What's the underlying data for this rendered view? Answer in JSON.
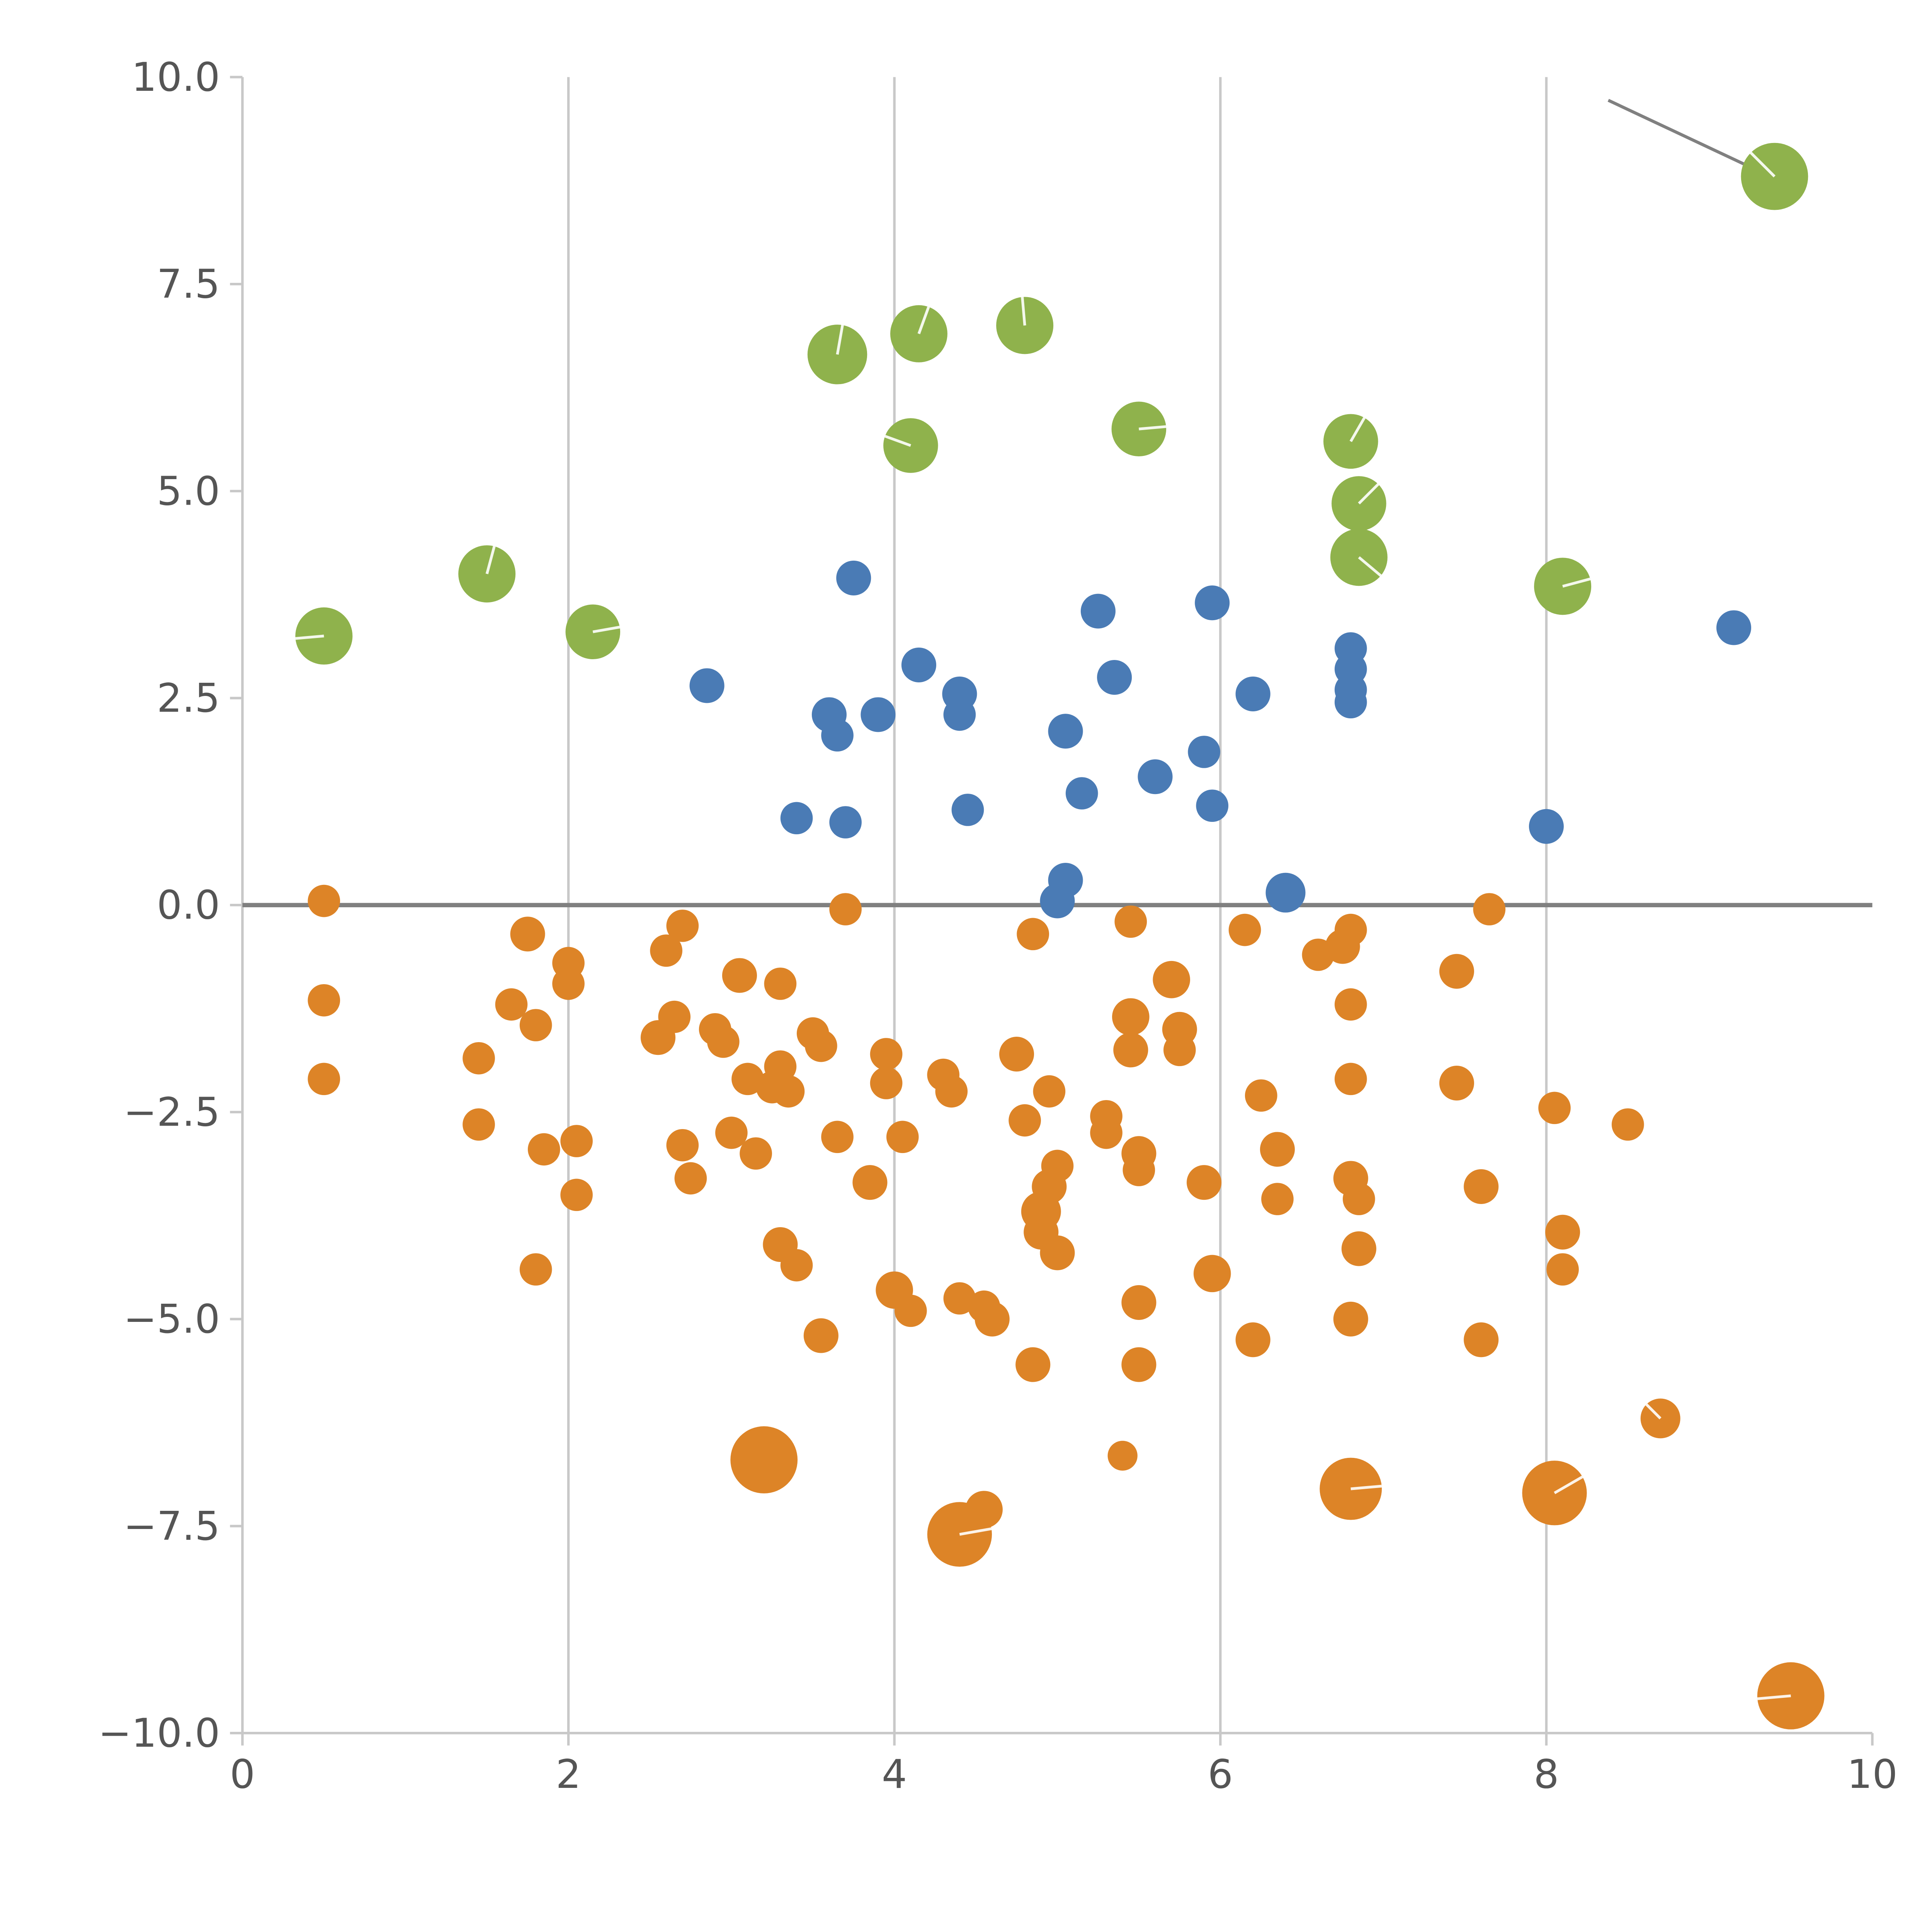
{
  "chart_data": {
    "type": "scatter",
    "title": "",
    "xlabel": "",
    "ylabel": "",
    "xlim": [
      0,
      10
    ],
    "ylim": [
      -10,
      10
    ],
    "grid": "vertical-only",
    "legend": "none",
    "x_ticks": [
      0,
      2,
      4,
      6,
      8,
      10
    ],
    "x_tick_labels": [
      "0",
      "2",
      "4",
      "6",
      "8",
      "10"
    ],
    "y_ticks": [
      -10,
      -7.5,
      -5,
      -2.5,
      0,
      2.5,
      5,
      7.5,
      10
    ],
    "y_tick_labels": [
      "−10.0",
      "−7.5",
      "−5.0",
      "−2.5",
      "0.0",
      "2.5",
      "5.0",
      "7.5",
      "10.0"
    ],
    "x_gridlines": [
      2,
      4,
      6,
      8
    ],
    "zero_line_y": 0,
    "annotation_line": {
      "x1": 8.38,
      "y1": 9.72,
      "x2": 9.32,
      "y2": 8.85
    },
    "colors": {
      "green": "#8fb24c",
      "blue": "#4a7bb5",
      "orange": "#dd8427",
      "grid": "#c8c8c8",
      "spine": "#c8c8c8",
      "zero_line": "#808080",
      "annotation": "#808080",
      "axis_text": "#555555",
      "bubble_tick": "#ffffff",
      "background": "#ffffff"
    },
    "point_format": [
      "x",
      "y",
      "radius_px",
      "white_tick_angle_deg(optional)"
    ],
    "series": [
      {
        "name": "green-bubbles",
        "color_key": "green",
        "points": [
          [
            0.5,
            3.25,
            23,
            185
          ],
          [
            1.5,
            4.0,
            23,
            75
          ],
          [
            2.15,
            3.3,
            22,
            10
          ],
          [
            3.65,
            6.65,
            24,
            80
          ],
          [
            4.15,
            6.9,
            23,
            70
          ],
          [
            4.1,
            5.55,
            22,
            160
          ],
          [
            4.8,
            7.0,
            23,
            95
          ],
          [
            5.5,
            5.75,
            22,
            5
          ],
          [
            6.8,
            5.6,
            22,
            60
          ],
          [
            6.85,
            4.85,
            22,
            45
          ],
          [
            6.85,
            4.2,
            23,
            -40
          ],
          [
            8.1,
            3.85,
            23,
            15
          ],
          [
            9.4,
            8.8,
            27,
            135
          ]
        ]
      },
      {
        "name": "blue-dots",
        "color_key": "blue",
        "points": [
          [
            2.85,
            2.65,
            14
          ],
          [
            3.4,
            1.05,
            13
          ],
          [
            3.6,
            2.3,
            14
          ],
          [
            3.65,
            2.05,
            13
          ],
          [
            3.7,
            1.0,
            13
          ],
          [
            3.75,
            3.95,
            14
          ],
          [
            3.9,
            2.3,
            14
          ],
          [
            4.15,
            2.9,
            14
          ],
          [
            4.4,
            2.55,
            14
          ],
          [
            4.4,
            2.3,
            13
          ],
          [
            4.45,
            1.15,
            13
          ],
          [
            5.0,
            0.05,
            14
          ],
          [
            5.05,
            0.3,
            14
          ],
          [
            5.05,
            2.1,
            14
          ],
          [
            5.15,
            1.35,
            13
          ],
          [
            5.25,
            3.55,
            14
          ],
          [
            5.35,
            2.75,
            14
          ],
          [
            5.6,
            1.55,
            14
          ],
          [
            5.9,
            1.85,
            13
          ],
          [
            5.95,
            3.65,
            14
          ],
          [
            5.95,
            1.2,
            13
          ],
          [
            6.2,
            2.55,
            14
          ],
          [
            6.4,
            0.15,
            16
          ],
          [
            6.8,
            3.1,
            13
          ],
          [
            6.8,
            2.85,
            13
          ],
          [
            6.8,
            2.6,
            13
          ],
          [
            6.8,
            2.45,
            13
          ],
          [
            8.0,
            0.95,
            14
          ],
          [
            9.15,
            3.35,
            14
          ]
        ]
      },
      {
        "name": "orange-dots",
        "color_key": "orange",
        "points": [
          [
            0.5,
            0.05,
            13
          ],
          [
            0.5,
            -1.15,
            13
          ],
          [
            0.5,
            -2.1,
            13
          ],
          [
            1.45,
            -1.85,
            13
          ],
          [
            1.45,
            -2.65,
            13
          ],
          [
            1.65,
            -1.2,
            13
          ],
          [
            1.75,
            -0.35,
            14
          ],
          [
            1.8,
            -1.45,
            13
          ],
          [
            1.85,
            -2.95,
            13
          ],
          [
            1.8,
            -4.4,
            13
          ],
          [
            2.0,
            -0.7,
            13
          ],
          [
            2.0,
            -0.95,
            13
          ],
          [
            2.05,
            -2.85,
            13
          ],
          [
            2.05,
            -3.5,
            13
          ],
          [
            2.55,
            -1.6,
            14
          ],
          [
            2.6,
            -0.55,
            13
          ],
          [
            2.65,
            -1.35,
            13
          ],
          [
            2.7,
            -0.25,
            13
          ],
          [
            2.7,
            -2.9,
            13
          ],
          [
            2.75,
            -3.3,
            13
          ],
          [
            2.9,
            -1.5,
            13
          ],
          [
            2.95,
            -1.65,
            13
          ],
          [
            3.0,
            -2.75,
            13
          ],
          [
            3.05,
            -0.85,
            14
          ],
          [
            3.1,
            -2.1,
            13
          ],
          [
            3.15,
            -3.0,
            13
          ],
          [
            3.25,
            -2.2,
            13
          ],
          [
            3.3,
            -0.95,
            13
          ],
          [
            3.3,
            -1.95,
            13
          ],
          [
            3.3,
            -4.1,
            14
          ],
          [
            3.35,
            -2.25,
            13
          ],
          [
            3.4,
            -4.35,
            13
          ],
          [
            3.2,
            -6.7,
            27
          ],
          [
            3.5,
            -1.55,
            13
          ],
          [
            3.55,
            -1.7,
            13
          ],
          [
            3.55,
            -5.2,
            14
          ],
          [
            3.65,
            -2.8,
            13
          ],
          [
            3.7,
            -0.05,
            13
          ],
          [
            3.85,
            -3.35,
            14
          ],
          [
            3.95,
            -1.8,
            13
          ],
          [
            3.95,
            -2.15,
            13
          ],
          [
            4.0,
            -4.65,
            15
          ],
          [
            4.05,
            -2.8,
            13
          ],
          [
            4.1,
            -4.9,
            13
          ],
          [
            4.3,
            -2.05,
            13
          ],
          [
            4.35,
            -2.25,
            13
          ],
          [
            4.4,
            -4.75,
            13
          ],
          [
            4.4,
            -7.6,
            26,
            10
          ],
          [
            4.55,
            -7.3,
            15
          ],
          [
            4.6,
            -5.0,
            14
          ],
          [
            4.55,
            -4.85,
            13
          ],
          [
            4.75,
            -1.8,
            14
          ],
          [
            4.8,
            -2.6,
            13
          ],
          [
            4.85,
            -5.55,
            14
          ],
          [
            4.85,
            -0.35,
            13
          ],
          [
            4.9,
            -3.7,
            16
          ],
          [
            4.9,
            -3.95,
            14
          ],
          [
            4.95,
            -3.4,
            14
          ],
          [
            5.0,
            -3.15,
            13
          ],
          [
            5.0,
            -4.2,
            14
          ],
          [
            4.95,
            -2.25,
            13
          ],
          [
            5.3,
            -2.55,
            13
          ],
          [
            5.3,
            -2.75,
            13
          ],
          [
            5.45,
            -0.2,
            13
          ],
          [
            5.45,
            -1.35,
            15
          ],
          [
            5.45,
            -1.75,
            14
          ],
          [
            5.5,
            -3.0,
            14
          ],
          [
            5.5,
            -3.2,
            13
          ],
          [
            5.5,
            -4.8,
            14
          ],
          [
            5.5,
            -5.55,
            14
          ],
          [
            5.4,
            -6.65,
            12
          ],
          [
            5.7,
            -0.9,
            15
          ],
          [
            5.75,
            -1.5,
            14
          ],
          [
            5.75,
            -1.75,
            13
          ],
          [
            5.9,
            -3.35,
            14
          ],
          [
            5.95,
            -4.45,
            15
          ],
          [
            6.15,
            -0.3,
            13
          ],
          [
            6.2,
            -5.25,
            14
          ],
          [
            6.25,
            -2.3,
            13
          ],
          [
            6.35,
            -2.95,
            14
          ],
          [
            6.35,
            -3.55,
            13
          ],
          [
            6.6,
            -0.6,
            13
          ],
          [
            6.75,
            -0.5,
            14
          ],
          [
            6.8,
            -0.3,
            13
          ],
          [
            6.8,
            -1.2,
            13
          ],
          [
            6.8,
            -2.1,
            13
          ],
          [
            6.8,
            -3.3,
            14
          ],
          [
            6.85,
            -3.55,
            13
          ],
          [
            6.85,
            -4.15,
            14
          ],
          [
            6.8,
            -5.0,
            14
          ],
          [
            6.8,
            -7.05,
            25,
            5
          ],
          [
            7.45,
            -0.8,
            14
          ],
          [
            7.45,
            -2.15,
            14
          ],
          [
            7.6,
            -3.4,
            14
          ],
          [
            7.6,
            -5.25,
            14
          ],
          [
            7.65,
            -0.05,
            13
          ],
          [
            8.05,
            -2.45,
            13
          ],
          [
            8.1,
            -3.95,
            14
          ],
          [
            8.1,
            -4.4,
            13
          ],
          [
            8.05,
            -7.1,
            26,
            30
          ],
          [
            8.5,
            -2.65,
            13
          ],
          [
            8.7,
            -6.2,
            16,
            135
          ],
          [
            9.5,
            -9.55,
            27,
            185
          ]
        ]
      }
    ]
  }
}
